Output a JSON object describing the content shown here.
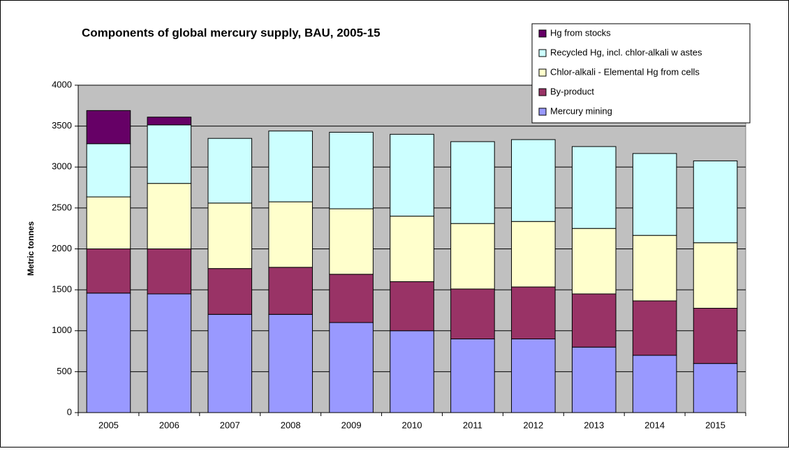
{
  "chart_data": {
    "type": "stacked_bar",
    "title": "Components of global mercury supply, BAU, 2005-15",
    "y_label": "Metric tonnes",
    "categories": [
      "2005",
      "2006",
      "2007",
      "2008",
      "2009",
      "2010",
      "2011",
      "2012",
      "2013",
      "2014",
      "2015"
    ],
    "series": [
      {
        "name": "Mercury mining",
        "color": "#9999ff",
        "values": [
          1460,
          1450,
          1200,
          1200,
          1100,
          1000,
          900,
          900,
          800,
          700,
          600
        ]
      },
      {
        "name": "By-product",
        "color": "#993366",
        "values": [
          540,
          550,
          560,
          575,
          590,
          600,
          610,
          635,
          650,
          665,
          675
        ]
      },
      {
        "name": "Chlor-alkali - Elemental Hg from cells",
        "color": "#ffffcc",
        "values": [
          635,
          800,
          800,
          800,
          800,
          800,
          800,
          800,
          800,
          800,
          800
        ]
      },
      {
        "name": "Recycled Hg, incl. chlor-alkali w astes",
        "color": "#ccffff",
        "values": [
          650,
          715,
          790,
          865,
          935,
          1000,
          1000,
          1000,
          1000,
          1000,
          1000
        ]
      },
      {
        "name": "Hg from stocks",
        "color": "#660066",
        "values": [
          405,
          95,
          0,
          0,
          0,
          0,
          0,
          0,
          0,
          0,
          0
        ]
      }
    ],
    "ylim": [
      0,
      4000
    ],
    "yticks": [
      0,
      500,
      1000,
      1500,
      2000,
      2500,
      3000,
      3500,
      4000
    ],
    "grid": true,
    "legend": "top-right",
    "plot_background": "#c0c0c0"
  }
}
